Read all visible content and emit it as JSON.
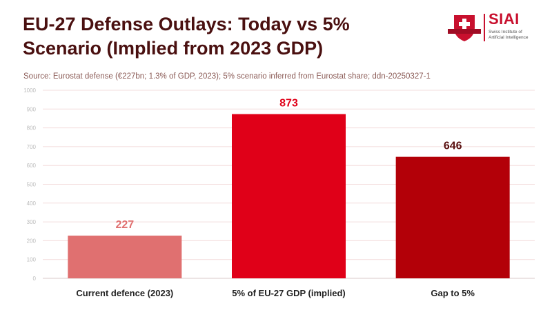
{
  "header": {
    "title_line1": "EU-27 Defense Outlays: Today vs 5%",
    "title_line2": "Scenario (Implied from 2023 GDP)",
    "source": "Source: Eurostat defense (€227bn; 1.3% of GDP, 2023); 5% scenario inferred from Eurostat share; ddn-20250327-1"
  },
  "logo": {
    "name": "SIAI",
    "subtitle_line1": "Swiss Institute of",
    "subtitle_line2": "Artificial Intelligence",
    "brand_color": "#c8102e"
  },
  "chart_data": {
    "type": "bar",
    "categories": [
      "Current defence (2023)",
      "5% of EU-27 GDP (implied)",
      "Gap to 5%"
    ],
    "values": [
      227,
      873,
      646
    ],
    "colors": [
      "#e07070",
      "#e00018",
      "#b30008"
    ],
    "label_colors": [
      "#e07070",
      "#e00018",
      "#5a1010"
    ],
    "ylim": [
      0,
      1000
    ],
    "yticks": [
      0,
      100,
      200,
      300,
      400,
      500,
      600,
      700,
      800,
      900,
      1000
    ],
    "grid": true,
    "title": "EU-27 Defense Outlays: Today vs 5% Scenario (Implied from 2023 GDP)",
    "xlabel": "",
    "ylabel": ""
  }
}
